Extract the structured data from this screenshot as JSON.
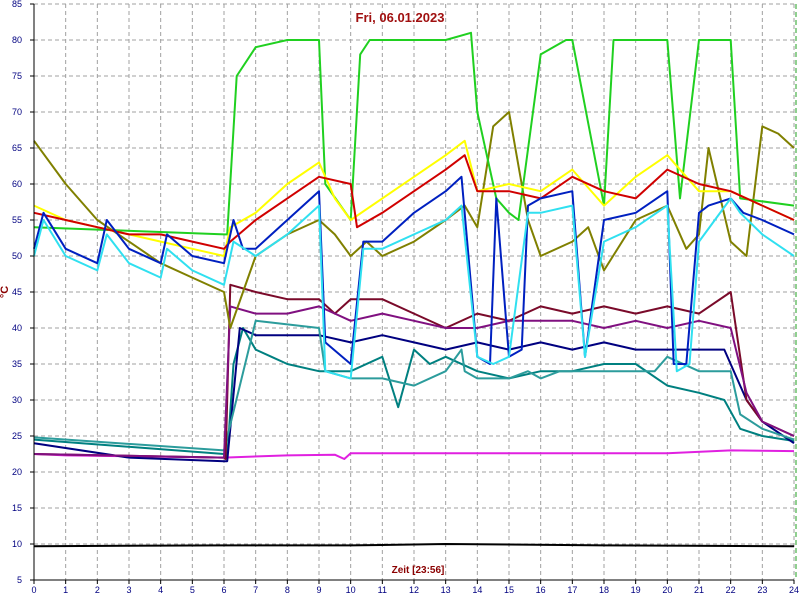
{
  "chart_data": {
    "type": "line",
    "title": "Fri, 06.01.2023",
    "xlabel": "Zeit [23:56]",
    "ylabel": "°C",
    "xlim": [
      0,
      24
    ],
    "ylim": [
      5,
      85
    ],
    "xticks": [
      0,
      1,
      2,
      3,
      4,
      5,
      6,
      7,
      8,
      9,
      10,
      11,
      12,
      13,
      14,
      15,
      16,
      17,
      18,
      19,
      20,
      21,
      22,
      23,
      24
    ],
    "yticks": [
      5,
      10,
      15,
      20,
      25,
      30,
      35,
      40,
      45,
      50,
      55,
      60,
      65,
      70,
      75,
      80,
      85
    ],
    "grid": true,
    "series": [
      {
        "color": "#000000",
        "x": [
          0,
          6,
          10,
          13,
          18,
          24
        ],
        "y": [
          9.7,
          9.8,
          9.8,
          10.0,
          9.8,
          9.7
        ]
      },
      {
        "color": "#e020e0",
        "x": [
          0,
          1,
          6,
          8,
          9.5,
          9.8,
          10,
          14,
          20,
          22,
          24
        ],
        "y": [
          22.5,
          22.3,
          22.0,
          22.3,
          22.4,
          21.8,
          22.6,
          22.6,
          22.6,
          23.0,
          22.9
        ]
      },
      {
        "color": "#008080",
        "x": [
          0,
          6,
          6.1,
          6.3,
          6.6,
          7,
          7.5,
          8,
          9,
          10,
          11,
          11.5,
          12,
          12.5,
          13,
          14,
          15,
          16,
          17,
          18,
          19,
          20,
          21,
          21.8,
          22.3,
          23,
          24
        ],
        "y": [
          24.5,
          22.5,
          22.0,
          35,
          40,
          37,
          36,
          35,
          34,
          34,
          36,
          29,
          37,
          35,
          36,
          34,
          33,
          34,
          34,
          35,
          35,
          32,
          31,
          30,
          26,
          25,
          24.3
        ]
      },
      {
        "color": "#000080",
        "x": [
          0,
          3,
          6,
          6.1,
          6.5,
          7,
          8,
          9,
          10,
          11,
          12,
          13,
          14,
          15,
          16,
          17,
          18,
          19,
          20,
          21,
          21.8,
          22.5,
          23,
          24
        ],
        "y": [
          24.0,
          22.0,
          21.5,
          21.5,
          40,
          39,
          39,
          39,
          38,
          39,
          38,
          37,
          38,
          37,
          38,
          37,
          38,
          37,
          37,
          37,
          37,
          30,
          27,
          24
        ]
      },
      {
        "color": "#2c9c9c",
        "x": [
          0,
          6,
          7,
          9,
          9.2,
          10,
          10.4,
          11,
          12,
          13,
          13.5,
          13.6,
          14,
          15,
          15.6,
          16,
          16.6,
          17,
          17.4,
          18,
          19,
          19.6,
          20,
          21,
          21.3,
          22,
          22.3,
          23,
          24
        ],
        "y": [
          24.8,
          23.0,
          41,
          40,
          34,
          33,
          33,
          33,
          32,
          34,
          37,
          34,
          33,
          33,
          34,
          33,
          34,
          34,
          34,
          34,
          34,
          34,
          36,
          34,
          34,
          34,
          28,
          26,
          24.5
        ]
      },
      {
        "color": "#7a0a2a",
        "x": [
          0,
          6,
          6.05,
          6.2,
          7,
          8,
          9,
          9.5,
          10,
          11,
          12,
          13,
          14,
          15,
          16,
          17,
          18,
          19,
          20,
          21,
          22,
          22.5,
          23,
          24
        ],
        "y": [
          22.5,
          22.0,
          21.8,
          46,
          45,
          44,
          44,
          42,
          44,
          44,
          42,
          40,
          42,
          41,
          43,
          42,
          43,
          42,
          43,
          42,
          45,
          30,
          27,
          25
        ]
      },
      {
        "color": "#801080",
        "x": [
          0,
          6,
          6.2,
          7,
          8,
          9,
          10,
          11,
          12,
          13,
          14,
          15,
          16,
          17,
          18,
          19,
          20,
          21,
          22,
          22.5,
          23,
          24
        ],
        "y": [
          22.5,
          22.0,
          43,
          42,
          42,
          43,
          41,
          42,
          41,
          40,
          40,
          41,
          41,
          41,
          40,
          41,
          40,
          41,
          40,
          31,
          27,
          25
        ]
      },
      {
        "color": "#808000",
        "x": [
          0,
          1,
          2,
          3,
          4,
          5,
          6,
          6.2,
          7,
          8,
          9,
          9.5,
          10,
          10.5,
          11,
          12,
          13,
          13.6,
          14,
          14.5,
          15,
          15.6,
          16,
          17,
          17.5,
          18,
          19,
          20,
          20.6,
          21,
          21.3,
          22,
          22.5,
          23,
          23.5,
          24
        ],
        "y": [
          66,
          60,
          55,
          52,
          49,
          47,
          45,
          40,
          50,
          53,
          55,
          53,
          50,
          52,
          50,
          52,
          55,
          57,
          54,
          68,
          70,
          55,
          50,
          52,
          54,
          48,
          55,
          57,
          51,
          53,
          65,
          52,
          50,
          68,
          67,
          65
        ]
      },
      {
        "color": "#20d020",
        "x": [
          0,
          6,
          6.1,
          6.4,
          7,
          8,
          9,
          9.2,
          10,
          10.3,
          10.6,
          11,
          12,
          13,
          13.8,
          14,
          14.6,
          15,
          15.3,
          16,
          16.8,
          17,
          18,
          18.3,
          19,
          20,
          20.4,
          21,
          21.3,
          22,
          22.3,
          24
        ],
        "y": [
          54,
          53,
          53,
          75,
          79,
          80,
          80,
          60,
          55,
          78,
          80,
          80,
          80,
          80,
          81,
          70,
          58,
          56,
          55,
          78,
          80,
          80,
          57,
          80,
          80,
          80,
          58,
          80,
          80,
          80,
          58,
          57
        ]
      },
      {
        "color": "#ffff00",
        "x": [
          0,
          1,
          2,
          3,
          4,
          5,
          6,
          6.2,
          7,
          8,
          9,
          9.5,
          10,
          11,
          12,
          13,
          13.6,
          14,
          15,
          16,
          17,
          18,
          19,
          20,
          21,
          22,
          23,
          24
        ],
        "y": [
          57,
          55,
          54,
          53,
          52,
          51,
          50,
          54,
          56,
          60,
          63,
          58,
          55,
          58,
          61,
          64,
          66,
          59,
          60,
          59,
          62,
          57,
          61,
          64,
          59,
          59,
          57,
          55
        ]
      },
      {
        "color": "#d00000",
        "x": [
          0,
          1,
          2,
          3,
          4,
          5,
          6,
          6.2,
          7,
          8,
          9,
          10,
          10.2,
          11,
          12,
          13,
          13.6,
          14,
          15,
          16,
          17,
          18,
          19,
          20,
          21,
          22,
          23,
          24
        ],
        "y": [
          56,
          55,
          54,
          53,
          53,
          52,
          51,
          52,
          55,
          58,
          61,
          60,
          54,
          56,
          59,
          62,
          64,
          59,
          59,
          58,
          61,
          59,
          58,
          62,
          60,
          59,
          57,
          55
        ]
      },
      {
        "color": "#0020c0",
        "x": [
          0,
          0.3,
          1,
          2,
          2.3,
          3,
          4,
          4.2,
          5,
          6,
          6.3,
          6.6,
          7,
          8,
          9,
          9.2,
          10,
          10.4,
          11,
          12,
          13,
          13.5,
          14,
          14.4,
          14.6,
          15,
          15.4,
          15.6,
          16,
          17,
          17.4,
          18,
          19,
          20,
          20.2,
          20.6,
          21,
          21.3,
          22,
          22.4,
          23,
          24
        ],
        "y": [
          51,
          56,
          51,
          49,
          55,
          51,
          49,
          53,
          50,
          49,
          55,
          51,
          51,
          55,
          59,
          38,
          35,
          52,
          52,
          56,
          59,
          61,
          36,
          35,
          58,
          36,
          37,
          57,
          58,
          59,
          36,
          55,
          56,
          59,
          35,
          35,
          56,
          57,
          58,
          56,
          55,
          53
        ]
      },
      {
        "color": "#30e0f0",
        "x": [
          0,
          0.3,
          1,
          2,
          2.3,
          3,
          4,
          4.2,
          5,
          6,
          6.3,
          7,
          8,
          9,
          9.2,
          10,
          10.4,
          11,
          12,
          13,
          13.5,
          14,
          14.5,
          15,
          15.6,
          16,
          17,
          17.4,
          18,
          19,
          20,
          20.3,
          20.7,
          21,
          22,
          22.3,
          23,
          24
        ],
        "y": [
          50,
          55,
          50,
          48,
          53,
          49,
          47,
          51,
          48,
          46,
          52,
          50,
          53,
          57,
          34,
          33,
          51,
          51,
          53,
          55,
          57,
          36,
          35,
          36,
          56,
          56,
          57,
          36,
          52,
          54,
          57,
          34,
          35,
          52,
          58,
          56,
          53,
          50
        ]
      }
    ]
  }
}
